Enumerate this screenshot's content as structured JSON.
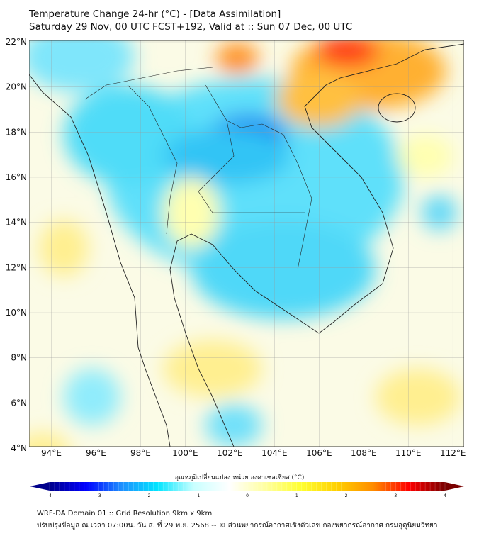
{
  "title": "Temperature Change 24-hr (°C) - [Data Assimilation]",
  "subtitle": "Saturday 29 Nov, 00 UTC FCST+192, Valid at :: Sun 07 Dec, 00 UTC",
  "map": {
    "lon_range": [
      93,
      112.5
    ],
    "lat_range": [
      4,
      22
    ],
    "lon_ticks": [
      "94°E",
      "96°E",
      "98°E",
      "100°E",
      "102°E",
      "104°E",
      "106°E",
      "108°E",
      "110°E",
      "112°E"
    ],
    "lat_ticks": [
      "22°N",
      "20°N",
      "18°N",
      "16°N",
      "14°N",
      "12°N",
      "10°N",
      "8°N",
      "6°N",
      "4°N"
    ]
  },
  "colorbar": {
    "label": "อุณหภูมิเปลี่ยนแปลง หน่วย องศาเซลเซียส (°C)",
    "ticks": [
      "-4",
      "-3",
      "-2",
      "-1",
      "0",
      "1",
      "2",
      "3",
      "4"
    ],
    "range": [
      -4,
      4
    ],
    "colors": [
      "#00008b",
      "#0000ff",
      "#1e8fff",
      "#00e5ff",
      "#c8ffff",
      "#ffffff",
      "#ffffa0",
      "#ffff30",
      "#ffd000",
      "#ff8c00",
      "#ff0000",
      "#7a0000"
    ]
  },
  "footer": {
    "line1": "WRF-DA Domain 01 :: Grid Resolution 9km x 9km",
    "line2": "ปรับปรุงข้อมูล ณ เวลา 07:00น. วัน ส. ที่ 29 พ.ย. 2568 -- © ส่วนพยากรณ์อากาศเชิงตัวเลข กองพยากรณ์อากาศ กรมอุตุนิยมวิทยา"
  }
}
